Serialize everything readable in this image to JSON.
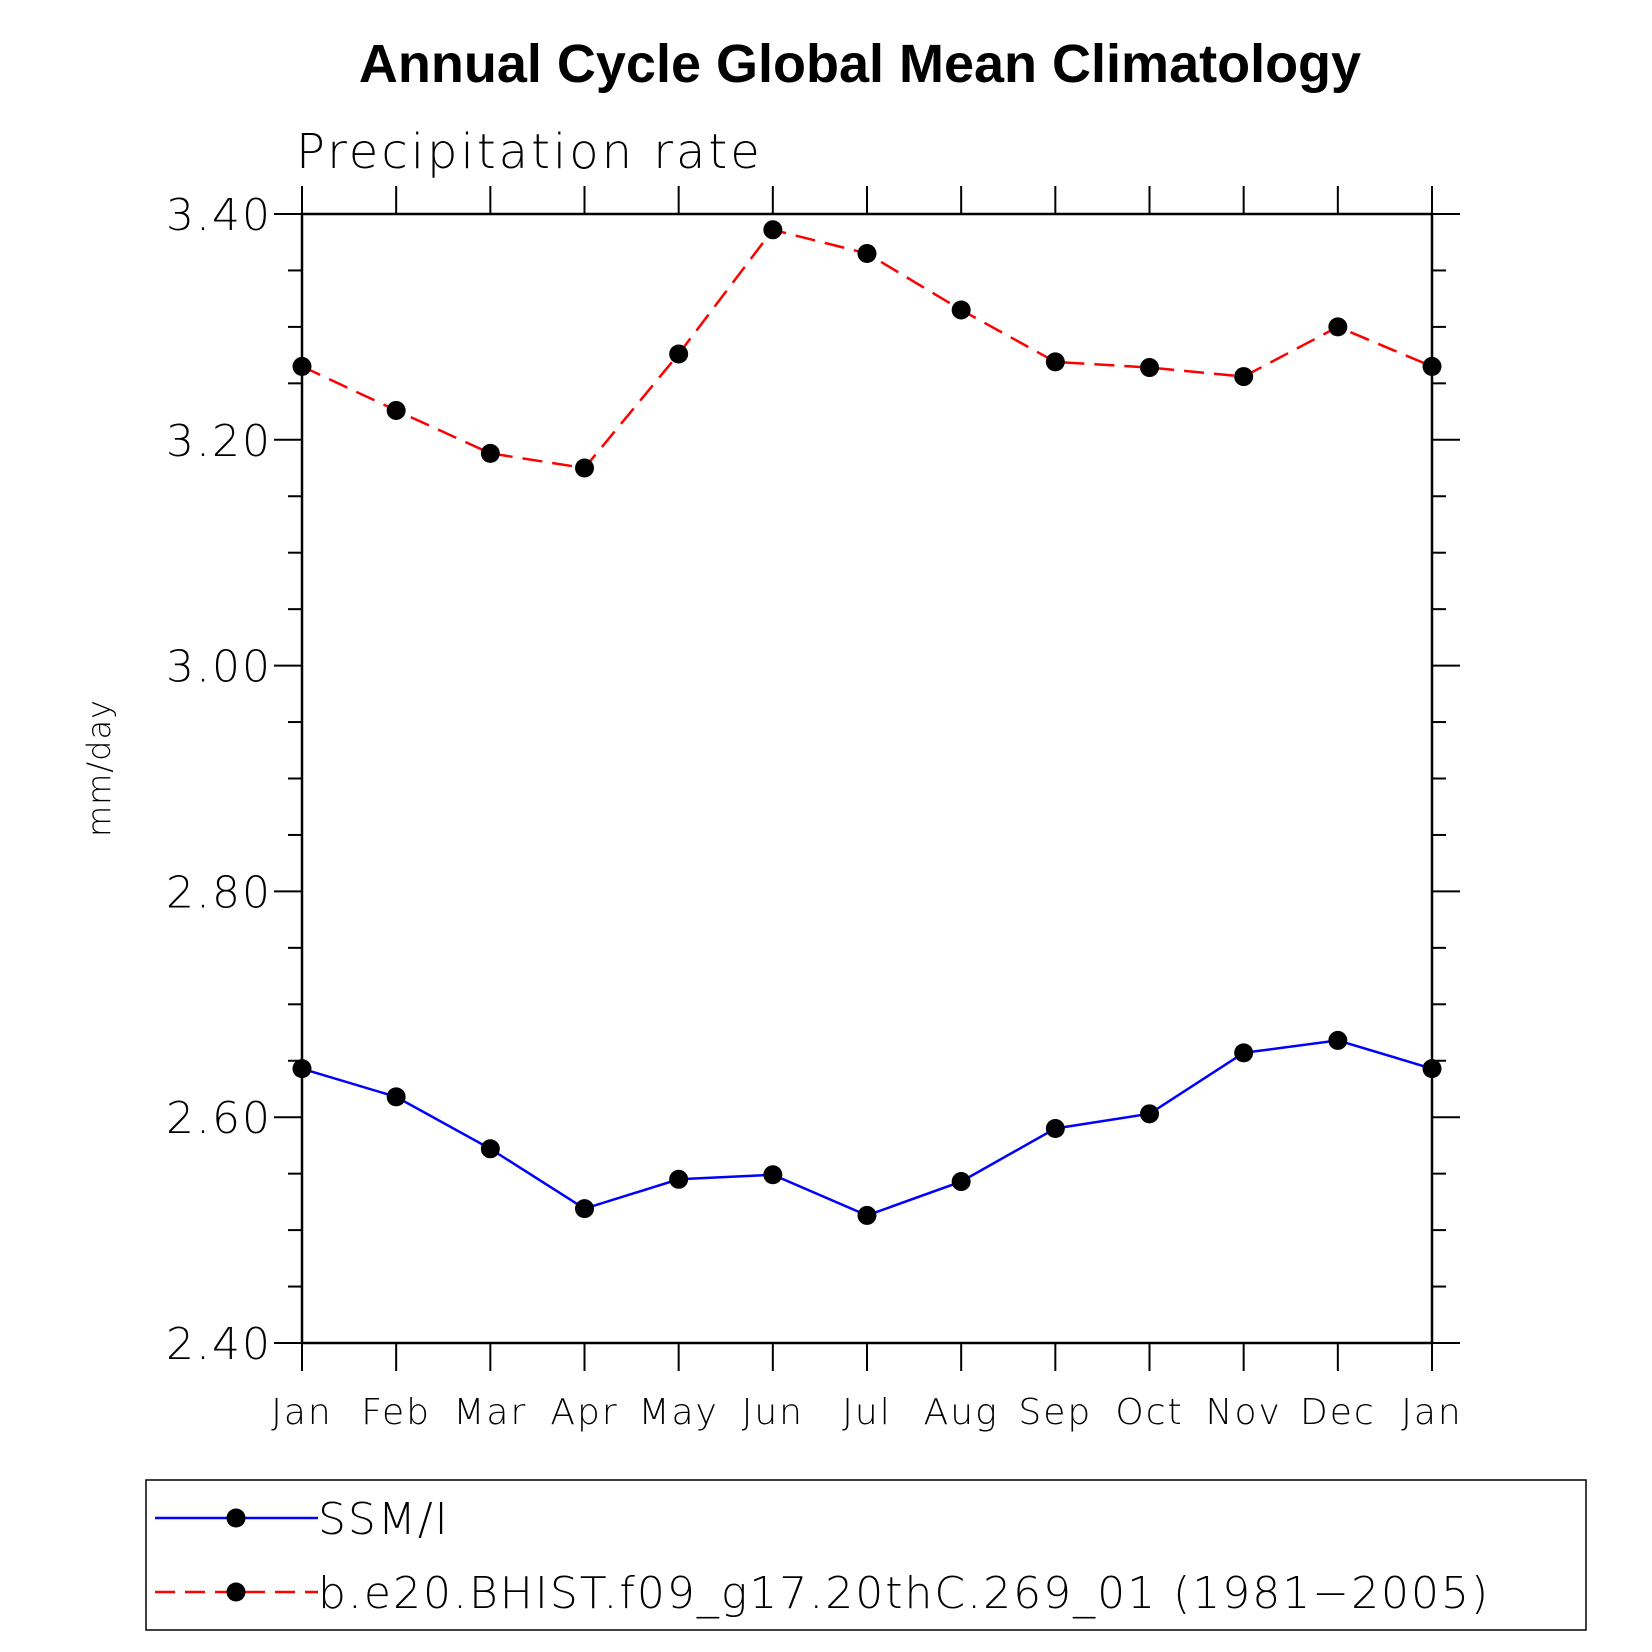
{
  "chart_data": {
    "type": "line",
    "title": "Annual Cycle Global Mean Climatology",
    "subtitle": "Precipitation rate",
    "ylabel": "mm/day",
    "xlabel": "",
    "ylim": [
      2.4,
      3.4
    ],
    "yticks": [
      "2.40",
      "2.60",
      "2.80",
      "3.00",
      "3.20",
      "3.40"
    ],
    "categories": [
      "Jan",
      "Feb",
      "Mar",
      "Apr",
      "May",
      "Jun",
      "Jul",
      "Aug",
      "Sep",
      "Oct",
      "Nov",
      "Dec",
      "Jan"
    ],
    "grid": false,
    "legend_position": "bottom",
    "series": [
      {
        "name": "SSM/I",
        "color": "#0000ff",
        "line_style": "solid",
        "marker": "filled-circle",
        "values": [
          2.643,
          2.618,
          2.572,
          2.519,
          2.545,
          2.549,
          2.513,
          2.543,
          2.59,
          2.603,
          2.657,
          2.668,
          2.643
        ]
      },
      {
        "name": "b.e20.BHIST.f09_g17.20thC.269_01 (1981−2005)",
        "color": "#ff0000",
        "line_style": "dashed",
        "marker": "filled-circle",
        "values": [
          3.265,
          3.226,
          3.188,
          3.175,
          3.276,
          3.386,
          3.365,
          3.315,
          3.269,
          3.264,
          3.256,
          3.3,
          3.265
        ]
      }
    ]
  }
}
